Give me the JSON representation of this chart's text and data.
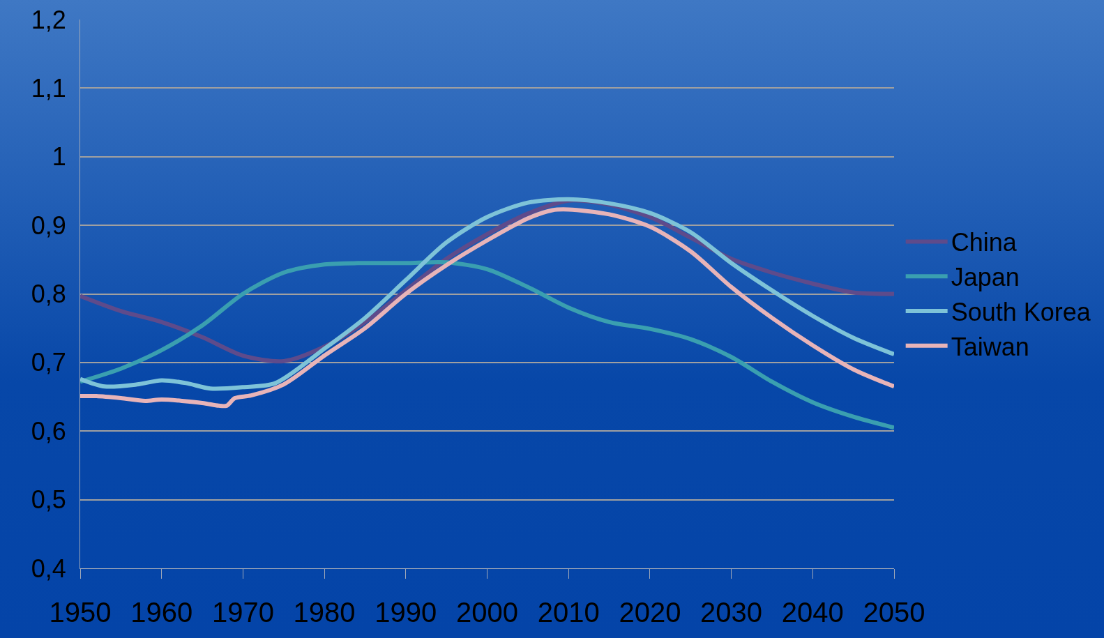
{
  "chart_data": {
    "type": "line",
    "x": [
      1950,
      1955,
      1960,
      1965,
      1970,
      1975,
      1980,
      1985,
      1990,
      1995,
      2000,
      2005,
      2010,
      2015,
      2020,
      2025,
      2030,
      2035,
      2040,
      2045,
      2050
    ],
    "series": [
      {
        "name": "China",
        "color": "#5e4b8b",
        "values": [
          0.797,
          0.775,
          0.759,
          0.737,
          0.71,
          0.702,
          0.723,
          0.759,
          0.805,
          0.851,
          0.887,
          0.917,
          0.936,
          0.93,
          0.912,
          0.882,
          0.851,
          0.831,
          0.815,
          0.802,
          0.8
        ]
      },
      {
        "name": "Japan",
        "color": "#3a9fb0",
        "values": [
          0.672,
          0.691,
          0.718,
          0.754,
          0.8,
          0.831,
          0.843,
          0.845,
          0.845,
          0.846,
          0.836,
          0.81,
          0.78,
          0.759,
          0.749,
          0.734,
          0.708,
          0.672,
          0.642,
          0.621,
          0.605
        ]
      },
      {
        "name": "South Korea",
        "color": "#7ec3d8",
        "x": [
          1950,
          1953,
          1957,
          1960,
          1963,
          1966,
          1970,
          1974,
          1980,
          1985,
          1990,
          1995,
          2000,
          2005,
          2010,
          2015,
          2020,
          2025,
          2030,
          2035,
          2040,
          2045,
          2050
        ],
        "values": [
          0.676,
          0.665,
          0.668,
          0.674,
          0.67,
          0.662,
          0.664,
          0.67,
          0.72,
          0.765,
          0.82,
          0.875,
          0.912,
          0.933,
          0.938,
          0.932,
          0.918,
          0.89,
          0.845,
          0.805,
          0.768,
          0.736,
          0.712
        ]
      },
      {
        "name": "Taiwan",
        "color": "#e8b4b8",
        "x": [
          1950,
          1952,
          1955,
          1958,
          1960,
          1965,
          1967,
          1968,
          1969,
          1971,
          1975,
          1980,
          1985,
          1990,
          1995,
          2000,
          2005,
          2008,
          2010,
          2015,
          2020,
          2025,
          2030,
          2035,
          2040,
          2045,
          2050
        ],
        "values": [
          0.651,
          0.651,
          0.648,
          0.644,
          0.646,
          0.641,
          0.637,
          0.637,
          0.648,
          0.652,
          0.668,
          0.71,
          0.75,
          0.8,
          0.842,
          0.878,
          0.91,
          0.922,
          0.923,
          0.916,
          0.898,
          0.862,
          0.81,
          0.765,
          0.725,
          0.69,
          0.665
        ]
      }
    ],
    "xlim": [
      1950,
      2050
    ],
    "xticks": [
      1950,
      1960,
      1970,
      1980,
      1990,
      2000,
      2010,
      2020,
      2030,
      2040,
      2050
    ],
    "ylim": [
      0.4,
      1.2
    ],
    "yticks": [
      {
        "value": 0.4,
        "label": "0,4"
      },
      {
        "value": 0.5,
        "label": "0,5"
      },
      {
        "value": 0.6,
        "label": "0,6"
      },
      {
        "value": 0.7,
        "label": "0,7"
      },
      {
        "value": 0.8,
        "label": "0,8"
      },
      {
        "value": 0.9,
        "label": "0,9"
      },
      1,
      {
        "value": 1.1,
        "label": "1,1"
      },
      {
        "value": 1.2,
        "label": "1,2"
      }
    ],
    "grid": "y",
    "legend": "right",
    "marker": "none",
    "line_style": "solid"
  }
}
